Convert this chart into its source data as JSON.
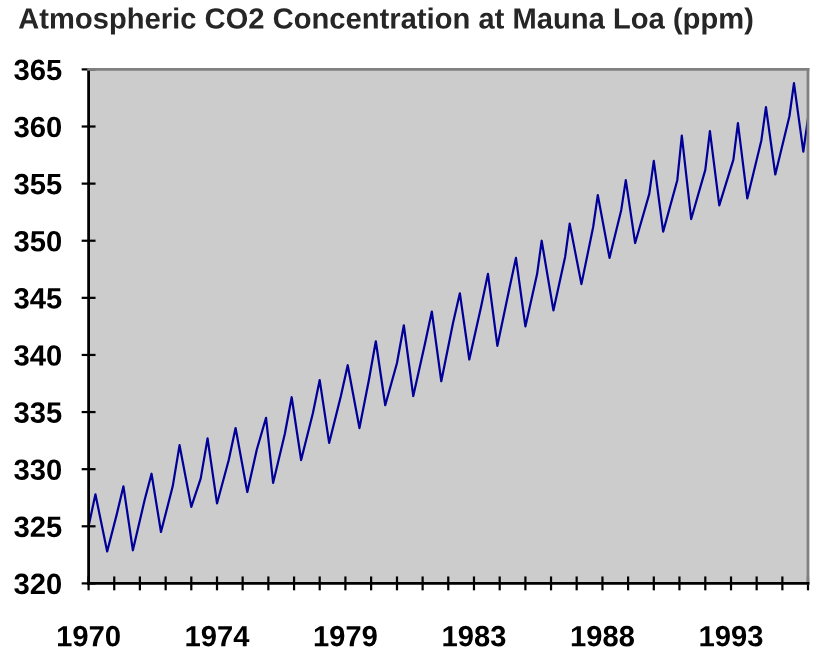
{
  "chart_data": {
    "type": "line",
    "title": "Atmospheric CO2 Concentration at Mauna Loa (ppm)",
    "x": [
      "1970-02",
      "1970-05",
      "1970-10",
      "1971-02",
      "1971-05",
      "1971-09",
      "1972-02",
      "1972-05",
      "1972-09",
      "1973-02",
      "1973-05",
      "1973-10",
      "1974-02",
      "1974-05",
      "1974-09",
      "1975-02",
      "1975-05",
      "1975-10",
      "1976-02",
      "1976-06",
      "1976-09",
      "1977-02",
      "1977-05",
      "1977-09",
      "1978-02",
      "1978-05",
      "1978-09",
      "1979-02",
      "1979-05",
      "1979-10",
      "1980-02",
      "1980-05",
      "1980-09",
      "1981-02",
      "1981-05",
      "1981-09",
      "1982-02",
      "1982-05",
      "1982-09",
      "1983-02",
      "1983-05",
      "1983-09",
      "1984-02",
      "1984-05",
      "1984-09",
      "1985-02",
      "1985-05",
      "1985-09",
      "1986-02",
      "1986-04",
      "1986-09",
      "1987-02",
      "1987-04",
      "1987-09",
      "1988-02",
      "1988-04",
      "1988-09",
      "1989-02",
      "1989-04",
      "1989-08",
      "1990-02",
      "1990-04",
      "1990-08",
      "1991-02",
      "1991-04",
      "1991-08",
      "1992-02",
      "1992-04",
      "1992-08",
      "1993-02",
      "1993-04",
      "1993-08",
      "1994-02",
      "1994-04",
      "1994-08",
      "1995-02",
      "1995-04",
      "1995-08",
      "1995-10"
    ],
    "series": [
      {
        "color": "#000099",
        "values": [
          325.0,
          327.8,
          322.8,
          326.0,
          328.5,
          322.9,
          327.3,
          329.6,
          324.5,
          328.5,
          332.1,
          326.7,
          329.2,
          332.7,
          327.0,
          330.8,
          333.6,
          328.0,
          331.7,
          334.5,
          328.8,
          333.1,
          336.3,
          330.8,
          334.9,
          337.8,
          332.3,
          336.4,
          339.1,
          333.6,
          337.8,
          341.2,
          335.6,
          339.3,
          342.6,
          336.4,
          341.0,
          343.8,
          337.7,
          342.8,
          345.4,
          339.6,
          344.2,
          347.1,
          340.8,
          345.7,
          348.5,
          342.5,
          347.1,
          350.0,
          343.9,
          348.6,
          351.5,
          346.2,
          351.2,
          354.0,
          348.5,
          352.7,
          355.3,
          349.8,
          354.1,
          357.0,
          350.8,
          355.3,
          359.2,
          351.9,
          356.2,
          359.6,
          353.1,
          357.1,
          360.3,
          353.7,
          358.8,
          361.7,
          355.8,
          360.9,
          363.8,
          357.8,
          360.7
        ]
      }
    ],
    "xlim": [
      "1970-02",
      "1995-10"
    ],
    "xticks": [
      {
        "value": "1970-02",
        "label": "1970"
      },
      {
        "value": "1971-01",
        "label": null
      },
      {
        "value": "1971-12",
        "label": null
      },
      {
        "value": "1972-11",
        "label": null
      },
      {
        "value": "1973-10",
        "label": null
      },
      {
        "value": "1974-09",
        "label": "1974"
      },
      {
        "value": "1975-08",
        "label": null
      },
      {
        "value": "1976-07",
        "label": null
      },
      {
        "value": "1977-06",
        "label": null
      },
      {
        "value": "1978-05",
        "label": null
      },
      {
        "value": "1979-04",
        "label": "1979"
      },
      {
        "value": "1980-03",
        "label": null
      },
      {
        "value": "1981-02",
        "label": null
      },
      {
        "value": "1982-01",
        "label": null
      },
      {
        "value": "1982-12",
        "label": null
      },
      {
        "value": "1983-11",
        "label": "1983"
      },
      {
        "value": "1984-10",
        "label": null
      },
      {
        "value": "1985-09",
        "label": null
      },
      {
        "value": "1986-08",
        "label": null
      },
      {
        "value": "1987-07",
        "label": null
      },
      {
        "value": "1988-06",
        "label": "1988"
      },
      {
        "value": "1989-05",
        "label": null
      },
      {
        "value": "1990-04",
        "label": null
      },
      {
        "value": "1991-03",
        "label": null
      },
      {
        "value": "1992-02",
        "label": null
      },
      {
        "value": "1993-01",
        "label": "1993"
      },
      {
        "value": "1993-12",
        "label": null
      },
      {
        "value": "1994-11",
        "label": null
      },
      {
        "value": "1995-10",
        "label": null
      }
    ],
    "ylim": [
      320,
      365
    ],
    "yticks": [
      320,
      325,
      330,
      335,
      340,
      345,
      350,
      355,
      360,
      365
    ],
    "marker": "none",
    "line_style": "solid"
  }
}
